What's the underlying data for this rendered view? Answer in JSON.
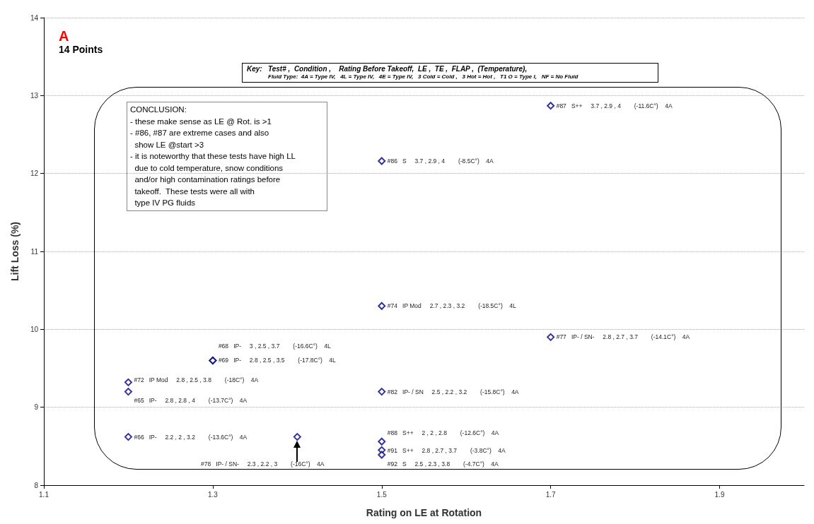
{
  "chart_data": {
    "type": "scatter",
    "title": "A",
    "subtitle": "14 Points",
    "xlabel": "Rating on LE at Rotation",
    "ylabel": "Lift Loss (%)",
    "x": [
      1.7,
      1.5,
      1.5,
      1.7,
      1.3,
      1.3,
      1.2,
      1.2,
      1.5,
      1.2,
      1.4,
      1.5,
      1.5,
      1.5
    ],
    "series": [
      {
        "color": "#000080",
        "values": [
          12.87,
          12.16,
          10.3,
          9.9,
          9.6,
          9.6,
          9.32,
          9.2,
          9.2,
          8.62,
          8.62,
          8.56,
          8.45,
          8.39
        ]
      }
    ],
    "xlim": [
      1.1,
      2.0
    ],
    "xticks": [
      1.1,
      1.3,
      1.5,
      1.7,
      1.9
    ],
    "ylim": [
      8,
      14
    ],
    "yticks": [
      8,
      9,
      10,
      11,
      12,
      13,
      14
    ],
    "grid": "y",
    "marker": "diamond",
    "annotations": [
      "Key:   Test# ,  Condition ,    Rating Before Takeoff,  LE ,  TE ,  FLAP ,  (Temperature),",
      "Fluid Type:  4A = Type IV,   4L = Type IV,   4E = Type IV,   3 Cold = Cold ,   3 Hot = Hot ,   T1 O = Type I,   NF = No Fluid",
      "CONCLUSION:\n- these make sense as LE @ Rot. is >1\n- #86, #87 are extreme cases and also\n  show LE @start >3\n- it is noteworthy that these tests have high LL\n  due to cold temperature, snow conditions\n  and/or high contamination ratings before\n  takeoff.  These tests were all with\n  type IV PG fluids",
      {
        "text": "#87   S++     3.7 , 2.9 , 4        (-11.6C°)    4A",
        "x": 1.7,
        "y": 12.87
      },
      {
        "text": "#86   S     3.7 , 2.9 , 4        (-8.5C°)    4A",
        "x": 1.5,
        "y": 12.16
      },
      {
        "text": "#74   IP Mod     2.7 , 2.3 , 3.2        (-18.5C°)    4L",
        "x": 1.5,
        "y": 10.3
      },
      {
        "text": "#77   IP- / SN-     2.8 , 2.7 , 3.7        (-14.1C°)    4A",
        "x": 1.7,
        "y": 9.9
      },
      {
        "text": "#68   IP-     3 , 2.5 , 3.7        (-16.6C°)    4L",
        "x": 1.3,
        "y": 9.6
      },
      {
        "text": "#69   IP-     2.8 , 2.5 , 3.5        (-17.8C°)    4L",
        "x": 1.3,
        "y": 9.6
      },
      {
        "text": "#72   IP Mod     2.8 , 2.5 , 3.8        (-18C°)    4A",
        "x": 1.2,
        "y": 9.32
      },
      {
        "text": "#65   IP-     2.8 , 2.8 , 4        (-13.7C°)    4A",
        "x": 1.2,
        "y": 9.2
      },
      {
        "text": "#82   IP- / SN     2.5 , 2.2 , 3.2        (-15.8C°)    4A",
        "x": 1.5,
        "y": 9.2
      },
      {
        "text": "#66   IP-     2.2 , 2 , 3.2        (-13.6C°)    4A",
        "x": 1.2,
        "y": 8.62
      },
      "#78   IP- / SN-     2.3 , 2.2 , 3        (-16C°)    4A",
      {
        "text": "#88   S++     2 , 2 , 2.8        (-12.6C°)    4A",
        "x": 1.5,
        "y": 8.56
      },
      {
        "text": "#91   S++     2.8 , 2.7 , 3.7        (-3.8C°)    4A",
        "x": 1.5,
        "y": 8.45
      },
      {
        "text": "#92   S     2.5 , 2.3 , 3.8        (-4.7C°)    4A",
        "x": 1.5,
        "y": 8.39
      }
    ]
  }
}
